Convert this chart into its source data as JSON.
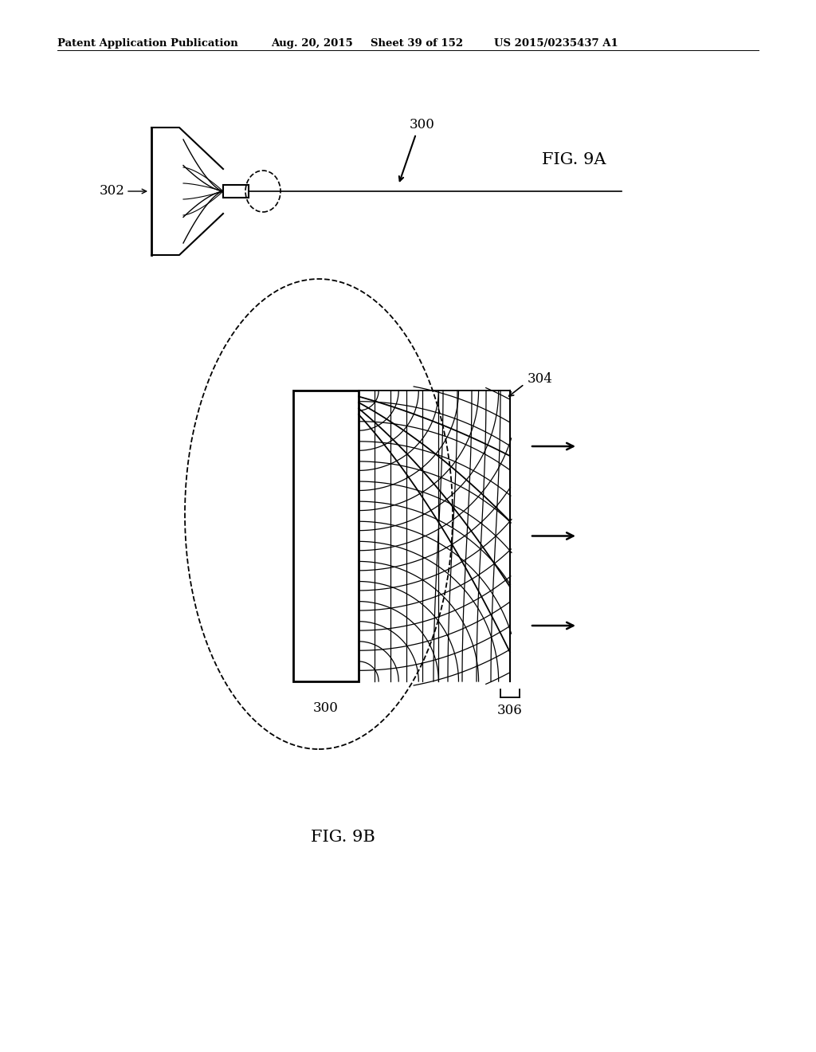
{
  "bg_color": "#ffffff",
  "header_text": "Patent Application Publication",
  "header_date": "Aug. 20, 2015",
  "header_sheet": "Sheet 39 of 152",
  "header_patent": "US 2015/0235437 A1",
  "fig9a_label": "FIG. 9A",
  "fig9b_label": "FIG. 9B",
  "label_300a": "300",
  "label_302": "302",
  "label_300b": "300",
  "label_304": "304",
  "label_306": "306"
}
